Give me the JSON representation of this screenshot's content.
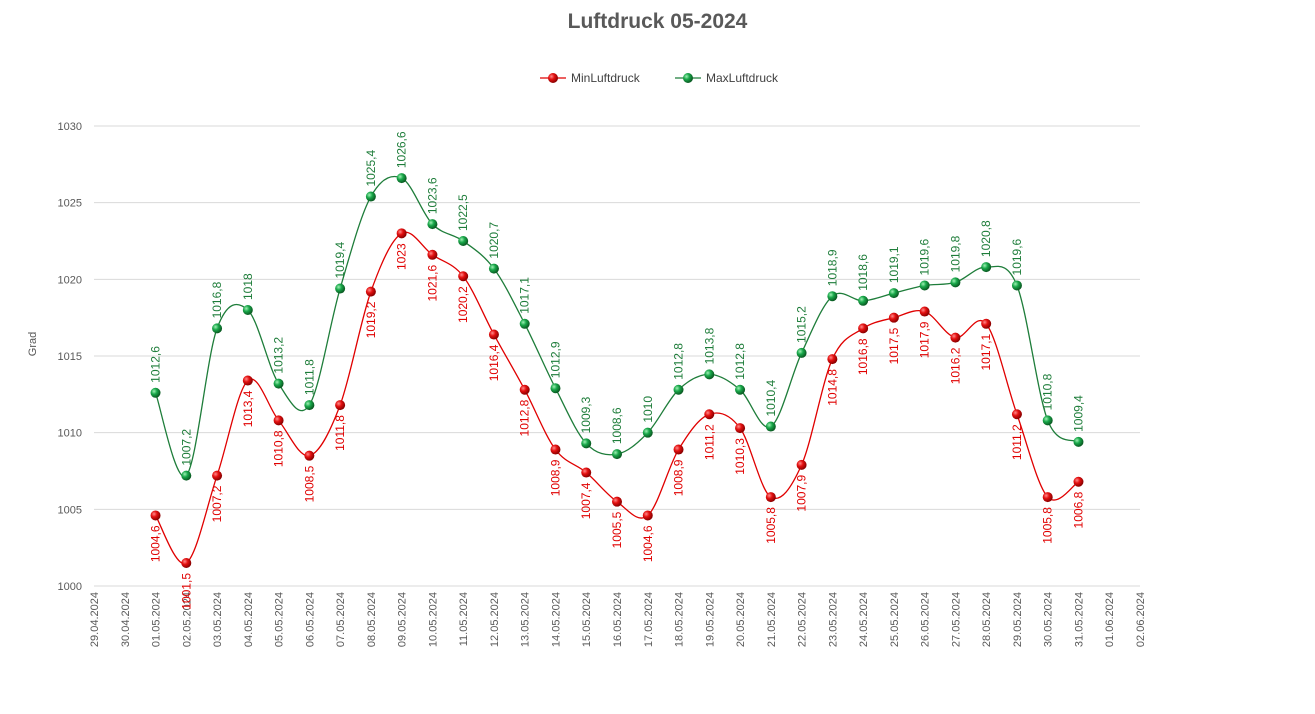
{
  "chart_data": {
    "type": "line",
    "title": "Luftdruck 05-2024",
    "xlabel": "",
    "ylabel": "Grad",
    "ylim": [
      1000,
      1030
    ],
    "yticks": [
      1000,
      1005,
      1010,
      1015,
      1020,
      1025,
      1030
    ],
    "legend_position": "top-center",
    "categories": [
      "29.04.2024",
      "30.04.2024",
      "01.05.2024",
      "02.05.2024",
      "03.05.2024",
      "04.05.2024",
      "05.05.2024",
      "06.05.2024",
      "07.05.2024",
      "08.05.2024",
      "09.05.2024",
      "10.05.2024",
      "11.05.2024",
      "12.05.2024",
      "13.05.2024",
      "14.05.2024",
      "15.05.2024",
      "16.05.2024",
      "17.05.2024",
      "18.05.2024",
      "19.05.2024",
      "20.05.2024",
      "21.05.2024",
      "22.05.2024",
      "23.05.2024",
      "24.05.2024",
      "25.05.2024",
      "26.05.2024",
      "27.05.2024",
      "28.05.2024",
      "29.05.2024",
      "30.05.2024",
      "31.05.2024",
      "01.06.2024",
      "02.06.2024"
    ],
    "series": [
      {
        "name": "MinLuftdruck",
        "color": "#e00000",
        "values": [
          null,
          null,
          1004.6,
          1001.5,
          1007.2,
          1013.4,
          1010.8,
          1008.5,
          1011.8,
          1019.2,
          1023,
          1021.6,
          1020.2,
          1016.4,
          1012.8,
          1008.9,
          1007.4,
          1005.5,
          1004.6,
          1008.9,
          1011.2,
          1010.3,
          1005.8,
          1007.9,
          1014.8,
          1016.8,
          1017.5,
          1017.9,
          1016.2,
          1017.1,
          1011.2,
          1005.8,
          1006.8,
          null,
          null
        ],
        "labels": [
          null,
          null,
          "1004,6",
          "1001,5",
          "1007,2",
          "1013,4",
          "1010,8",
          "1008,5",
          "1011,8",
          "1019,2",
          "1023",
          "1021,6",
          "1020,2",
          "1016,4",
          "1012,8",
          "1008,9",
          "1007,4",
          "1005,5",
          "1004,6",
          "1008,9",
          "1011,2",
          "1010,3",
          "1005,8",
          "1007,9",
          "1014,8",
          "1016,8",
          "1017,5",
          "1017,9",
          "1016,2",
          "1017,1",
          "1011,2",
          "1005,8",
          "1006,8",
          null,
          null
        ]
      },
      {
        "name": "MaxLuftdruck",
        "color": "#1e7d3a",
        "values": [
          null,
          null,
          1012.6,
          1007.2,
          1016.8,
          1018,
          1013.2,
          1011.8,
          1019.4,
          1025.4,
          1026.6,
          1023.6,
          1022.5,
          1020.7,
          1017.1,
          1012.9,
          1009.3,
          1008.6,
          1010,
          1012.8,
          1013.8,
          1012.8,
          1010.4,
          1015.2,
          1018.9,
          1018.6,
          1019.1,
          1019.6,
          1019.8,
          1020.8,
          1019.6,
          1010.8,
          1009.4,
          null,
          null
        ],
        "labels": [
          null,
          null,
          "1012,6",
          "1007,2",
          "1016,8",
          "1018",
          "1013,2",
          "1011,8",
          "1019,4",
          "1025,4",
          "1026,6",
          "1023,6",
          "1022,5",
          "1020,7",
          "1017,1",
          "1012,9",
          "1009,3",
          "1008,6",
          "1010",
          "1012,8",
          "1013,8",
          "1012,8",
          "1010,4",
          "1015,2",
          "1018,9",
          "1018,6",
          "1019,1",
          "1019,6",
          "1019,8",
          "1020,8",
          "1019,6",
          "1010,8",
          "1009,4",
          null,
          null
        ]
      }
    ]
  }
}
